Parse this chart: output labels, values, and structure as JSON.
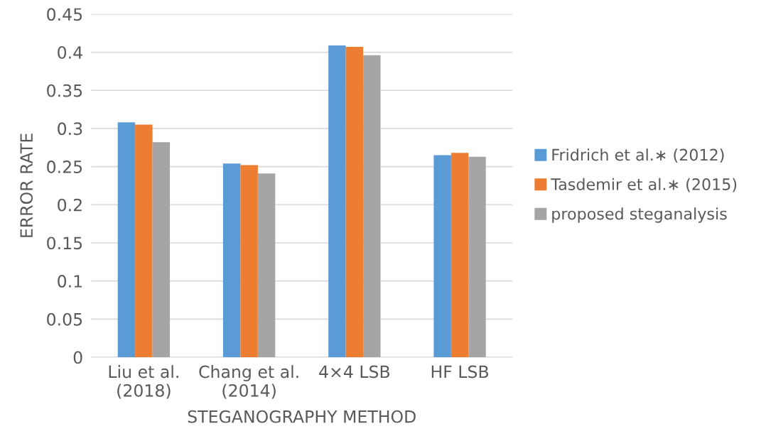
{
  "chart_data": {
    "type": "bar",
    "xlabel": "STEGANOGRAPHY METHOD",
    "ylabel": "ERROR RATE",
    "categories": [
      "Liu et al.\n(2018)",
      "Chang et al.\n(2014)",
      "4×4 LSB",
      "HF LSB"
    ],
    "series": [
      {
        "name": "Fridrich et al.∗ (2012)",
        "color": "#5b9bd5",
        "values": [
          0.308,
          0.254,
          0.409,
          0.265
        ]
      },
      {
        "name": "Tasdemir et al.∗ (2015)",
        "color": "#ed7d31",
        "values": [
          0.305,
          0.252,
          0.407,
          0.268
        ]
      },
      {
        "name": "proposed steganalysis",
        "color": "#a5a5a5",
        "values": [
          0.282,
          0.241,
          0.396,
          0.263
        ]
      }
    ],
    "ylim": [
      0,
      0.45
    ],
    "yticks": [
      {
        "value": 0,
        "label": "0"
      },
      0.05,
      0.1,
      0.15,
      0.2,
      0.25,
      0.3,
      0.35,
      0.4,
      0.45
    ],
    "grid": "y",
    "legend": "right"
  }
}
